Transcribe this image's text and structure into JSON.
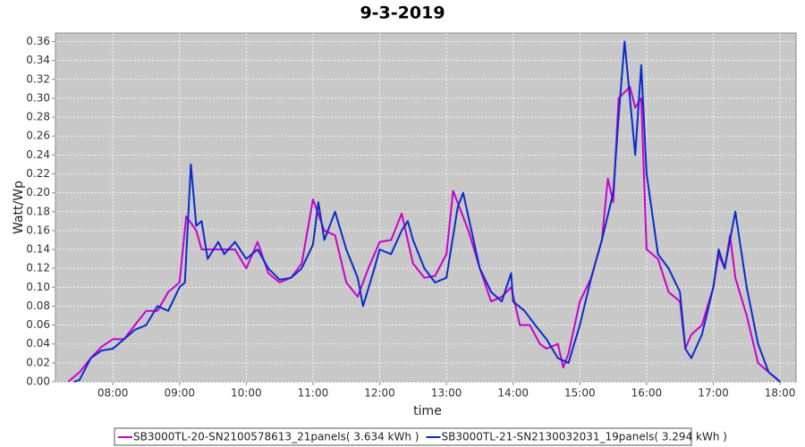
{
  "chart_data": {
    "type": "line",
    "title": "9-3-2019",
    "x_label": "time",
    "y_label": "Watt/Wp",
    "xlim": [
      7.14,
      18.24
    ],
    "ylim": [
      0,
      0.369
    ],
    "grid": true,
    "legend": "bottom",
    "xticks": [
      {
        "value": 8,
        "label": "08:00"
      },
      {
        "value": 9,
        "label": "09:00"
      },
      {
        "value": 10,
        "label": "10:00"
      },
      {
        "value": 11,
        "label": "11:00"
      },
      {
        "value": 12,
        "label": "12:00"
      },
      {
        "value": 13,
        "label": "13:00"
      },
      {
        "value": 14,
        "label": "14:00"
      },
      {
        "value": 15,
        "label": "15:00"
      },
      {
        "value": 16,
        "label": "16:00"
      },
      {
        "value": 17,
        "label": "17:00"
      },
      {
        "value": 18,
        "label": "18:00"
      }
    ],
    "yticks": [
      {
        "value": 0,
        "label": "0.00"
      },
      {
        "value": 0.02,
        "label": "0.02"
      },
      {
        "value": 0.04,
        "label": "0.04"
      },
      {
        "value": 0.06,
        "label": "0.06"
      },
      {
        "value": 0.08,
        "label": "0.08"
      },
      {
        "value": 0.1,
        "label": "0.10"
      },
      {
        "value": 0.12,
        "label": "0.12"
      },
      {
        "value": 0.14,
        "label": "0.14"
      },
      {
        "value": 0.16,
        "label": "0.16"
      },
      {
        "value": 0.18,
        "label": "0.18"
      },
      {
        "value": 0.2,
        "label": "0.20"
      },
      {
        "value": 0.22,
        "label": "0.22"
      },
      {
        "value": 0.24,
        "label": "0.24"
      },
      {
        "value": 0.26,
        "label": "0.26"
      },
      {
        "value": 0.28,
        "label": "0.28"
      },
      {
        "value": 0.3,
        "label": "0.30"
      },
      {
        "value": 0.32,
        "label": "0.32"
      },
      {
        "value": 0.34,
        "label": "0.34"
      },
      {
        "value": 0.36,
        "label": "0.36"
      }
    ],
    "series": [
      {
        "name": "SB3000TL-20-SN2100578613_21panels( 3.634 kWh )",
        "color": "#cc00cc",
        "x": [
          7.33,
          7.5,
          7.67,
          7.83,
          8.0,
          8.17,
          8.33,
          8.5,
          8.67,
          8.83,
          9.0,
          9.1,
          9.25,
          9.33,
          9.5,
          9.67,
          9.83,
          10.0,
          10.17,
          10.33,
          10.5,
          10.67,
          10.83,
          11.0,
          11.17,
          11.33,
          11.5,
          11.67,
          11.83,
          12.0,
          12.17,
          12.33,
          12.5,
          12.67,
          12.83,
          13.0,
          13.1,
          13.33,
          13.5,
          13.67,
          13.83,
          13.97,
          14.1,
          14.25,
          14.4,
          14.5,
          14.67,
          14.75,
          14.83,
          15.0,
          15.17,
          15.33,
          15.42,
          15.5,
          15.58,
          15.75,
          15.83,
          15.92,
          16.0,
          16.17,
          16.33,
          16.5,
          16.58,
          16.67,
          16.83,
          17.0,
          17.08,
          17.17,
          17.25,
          17.33,
          17.5,
          17.67,
          17.83,
          18.0
        ],
        "values": [
          0,
          0.01,
          0.025,
          0.037,
          0.045,
          0.045,
          0.06,
          0.075,
          0.075,
          0.095,
          0.105,
          0.175,
          0.16,
          0.14,
          0.14,
          0.14,
          0.14,
          0.12,
          0.148,
          0.115,
          0.105,
          0.11,
          0.125,
          0.193,
          0.16,
          0.155,
          0.105,
          0.09,
          0.12,
          0.148,
          0.15,
          0.178,
          0.125,
          0.11,
          0.112,
          0.135,
          0.202,
          0.16,
          0.12,
          0.085,
          0.09,
          0.1,
          0.06,
          0.06,
          0.04,
          0.035,
          0.04,
          0.015,
          0.03,
          0.085,
          0.11,
          0.15,
          0.215,
          0.19,
          0.3,
          0.312,
          0.29,
          0.3,
          0.14,
          0.13,
          0.095,
          0.085,
          0.035,
          0.05,
          0.06,
          0.1,
          0.135,
          0.12,
          0.155,
          0.11,
          0.07,
          0.02,
          0.01,
          0
        ]
      },
      {
        "name": "SB3000TL-21-SN2130032031_19panels( 3.294 kWh )",
        "color": "#0a2ccc",
        "x": [
          7.42,
          7.5,
          7.67,
          7.83,
          8.0,
          8.17,
          8.33,
          8.5,
          8.67,
          8.83,
          9.0,
          9.08,
          9.17,
          9.25,
          9.33,
          9.42,
          9.58,
          9.67,
          9.83,
          10.0,
          10.17,
          10.33,
          10.5,
          10.67,
          10.83,
          11.0,
          11.08,
          11.17,
          11.33,
          11.5,
          11.67,
          11.75,
          11.92,
          12.0,
          12.17,
          12.33,
          12.42,
          12.5,
          12.67,
          12.83,
          13.0,
          13.17,
          13.25,
          13.5,
          13.67,
          13.83,
          13.97,
          14.0,
          14.17,
          14.33,
          14.5,
          14.67,
          14.83,
          15.0,
          15.17,
          15.33,
          15.5,
          15.58,
          15.67,
          15.83,
          15.92,
          16.0,
          16.17,
          16.33,
          16.5,
          16.58,
          16.67,
          16.83,
          17.0,
          17.08,
          17.17,
          17.33,
          17.5,
          17.67,
          17.83,
          17.92,
          18.0
        ],
        "values": [
          0,
          0.002,
          0.025,
          0.033,
          0.035,
          0.045,
          0.055,
          0.06,
          0.08,
          0.075,
          0.1,
          0.105,
          0.23,
          0.165,
          0.17,
          0.13,
          0.148,
          0.135,
          0.148,
          0.13,
          0.14,
          0.12,
          0.108,
          0.11,
          0.12,
          0.145,
          0.19,
          0.15,
          0.18,
          0.14,
          0.11,
          0.08,
          0.12,
          0.14,
          0.135,
          0.16,
          0.17,
          0.15,
          0.12,
          0.105,
          0.11,
          0.185,
          0.2,
          0.12,
          0.095,
          0.085,
          0.115,
          0.085,
          0.075,
          0.06,
          0.045,
          0.025,
          0.02,
          0.06,
          0.11,
          0.15,
          0.2,
          0.28,
          0.36,
          0.24,
          0.335,
          0.22,
          0.135,
          0.12,
          0.095,
          0.035,
          0.025,
          0.05,
          0.1,
          0.14,
          0.12,
          0.18,
          0.1,
          0.04,
          0.01,
          0.005,
          0
        ]
      }
    ]
  }
}
